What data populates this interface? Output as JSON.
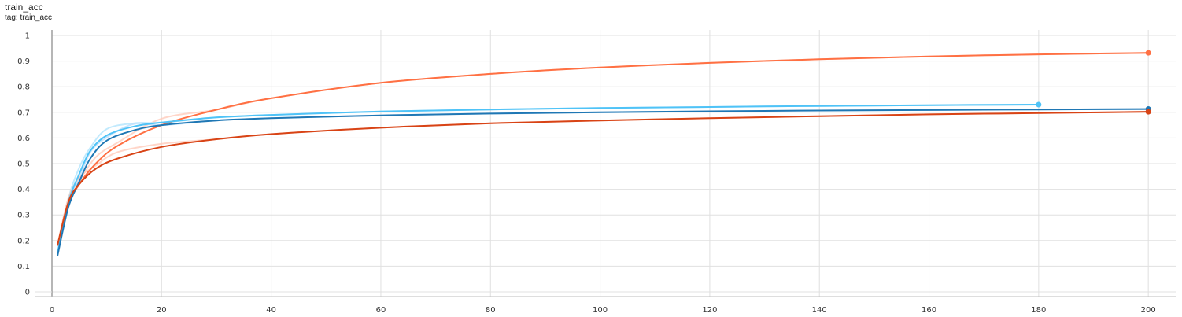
{
  "card": {
    "title": "train_acc",
    "tag": "tag: train_acc"
  },
  "chart_data": {
    "type": "line",
    "title": "train_acc",
    "xlabel": "",
    "ylabel": "",
    "xlim": [
      0,
      205
    ],
    "ylim": [
      0,
      1
    ],
    "xticks": [
      0,
      20,
      40,
      60,
      80,
      100,
      120,
      140,
      160,
      180,
      200
    ],
    "yticks": [
      0,
      0.1,
      0.2,
      0.3,
      0.4,
      0.5,
      0.6,
      0.7,
      0.8,
      0.9,
      1
    ],
    "xtick_labels": [
      "0",
      "20",
      "40",
      "60",
      "80",
      "100",
      "120",
      "140",
      "160",
      "180",
      "200"
    ],
    "ytick_labels": [
      "0",
      "0.1",
      "0.2",
      "0.3",
      "0.4",
      "0.5",
      "0.6",
      "0.7",
      "0.8",
      "0.9",
      "1"
    ],
    "grid": true,
    "smoothing_shown": true,
    "series": [
      {
        "color": "#ff7043",
        "raw_color": "#ffccbc",
        "x": [
          1,
          3,
          5,
          8,
          12,
          20,
          30,
          40,
          60,
          80,
          100,
          120,
          140,
          160,
          180,
          200
        ],
        "y": [
          0.18,
          0.34,
          0.42,
          0.5,
          0.57,
          0.65,
          0.71,
          0.755,
          0.815,
          0.85,
          0.875,
          0.893,
          0.907,
          0.918,
          0.926,
          0.932
        ]
      },
      {
        "color": "#4fc3f7",
        "raw_color": "#b3e5fc",
        "x": [
          1,
          3,
          5,
          7,
          10,
          15,
          20,
          30,
          40,
          60,
          80,
          100,
          120,
          140,
          160,
          180
        ],
        "y": [
          0.15,
          0.35,
          0.46,
          0.55,
          0.61,
          0.645,
          0.66,
          0.68,
          0.69,
          0.703,
          0.711,
          0.717,
          0.721,
          0.725,
          0.728,
          0.73
        ]
      },
      {
        "color": "#1f77b4",
        "raw_color": "#bbdefb",
        "x": [
          1,
          3,
          5,
          7,
          10,
          15,
          20,
          30,
          40,
          60,
          80,
          100,
          120,
          140,
          160,
          180,
          200
        ],
        "y": [
          0.14,
          0.33,
          0.43,
          0.52,
          0.59,
          0.63,
          0.65,
          0.668,
          0.677,
          0.688,
          0.695,
          0.7,
          0.704,
          0.707,
          0.709,
          0.711,
          0.713
        ]
      },
      {
        "color": "#d84315",
        "raw_color": "#ffccbc",
        "x": [
          1,
          3,
          5,
          8,
          12,
          20,
          30,
          40,
          60,
          80,
          100,
          120,
          140,
          160,
          180,
          200
        ],
        "y": [
          0.18,
          0.35,
          0.42,
          0.48,
          0.52,
          0.565,
          0.595,
          0.615,
          0.64,
          0.657,
          0.668,
          0.677,
          0.685,
          0.692,
          0.697,
          0.702
        ]
      }
    ]
  }
}
